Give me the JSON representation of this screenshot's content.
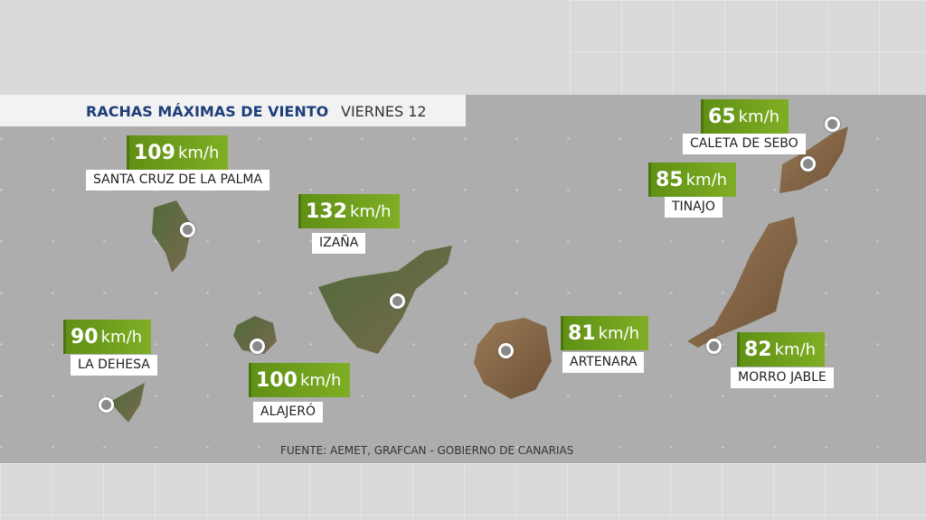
{
  "header": {
    "title": "RACHAS MÁXIMAS DE VIENTO",
    "subtitle": "VIERNES 12"
  },
  "stations": [
    {
      "value": 109,
      "unit": "km/h",
      "name": "SANTA CRUZ DE LA PALMA"
    },
    {
      "value": 132,
      "unit": "km/h",
      "name": "IZAÑA"
    },
    {
      "value": 65,
      "unit": "km/h",
      "name": "CALETA DE SEBO"
    },
    {
      "value": 85,
      "unit": "km/h",
      "name": "TINAJO"
    },
    {
      "value": 90,
      "unit": "km/h",
      "name": "LA DEHESA"
    },
    {
      "value": 100,
      "unit": "km/h",
      "name": "ALAJERÓ"
    },
    {
      "value": 81,
      "unit": "km/h",
      "name": "ARTENARA"
    },
    {
      "value": 82,
      "unit": "km/h",
      "name": "MORRO JABLE"
    }
  ],
  "source": "FUENTE: AEMET, GRAFCAN - GOBIERNO DE CANARIAS"
}
